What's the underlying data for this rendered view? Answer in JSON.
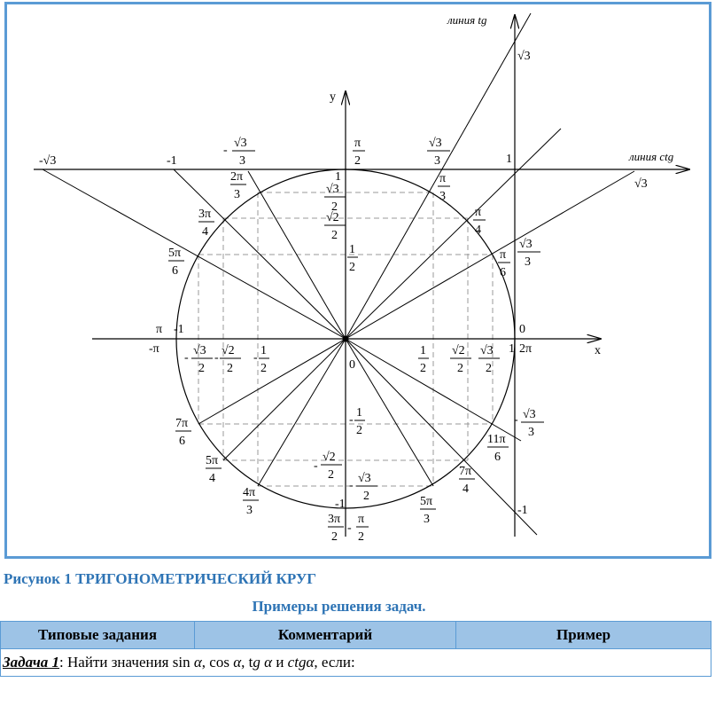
{
  "figure": {
    "axis_x_label": "x",
    "axis_y_label": "y",
    "tan_line_label": "линия tg",
    "cot_line_label": "линия ctg",
    "labels": {
      "pi_over_2": [
        "π",
        "2"
      ],
      "pi_over_3": [
        "π",
        "3"
      ],
      "pi_over_4": [
        "π",
        "4"
      ],
      "pi_over_6": [
        "π",
        "6"
      ],
      "two_pi_over_3": [
        "2π",
        "3"
      ],
      "three_pi_over_4": [
        "3π",
        "4"
      ],
      "five_pi_over_6": [
        "5π",
        "6"
      ],
      "seven_pi_over_6": [
        "7π",
        "6"
      ],
      "five_pi_over_4": [
        "5π",
        "4"
      ],
      "four_pi_over_3": [
        "4π",
        "3"
      ],
      "three_pi_over_2": [
        "3π",
        "2"
      ],
      "minus_pi_over_2": [
        "π",
        "2"
      ],
      "five_pi_over_3": [
        "5π",
        "3"
      ],
      "seven_pi_over_4": [
        "7π",
        "4"
      ],
      "eleven_pi_over_6": [
        "11π",
        "6"
      ],
      "pi": "π",
      "minus_pi": "-π",
      "zero": "0",
      "two_pi": "2π",
      "origin": "0",
      "one": "1",
      "minus_one": "-1",
      "sqrt3": "√3",
      "minus_sqrt3": "-√3",
      "minus_sign": "-",
      "sqrt2_over_2": [
        "√2",
        "2"
      ],
      "sqrt3_over_2": [
        "√3",
        "2"
      ],
      "sqrt3_over_3": [
        "√3",
        "3"
      ],
      "half": [
        "1",
        "2"
      ]
    }
  },
  "caption": "Рисунок 1 ТРИГОНОМЕТРИЧЕСКИЙ КРУГ",
  "examples_heading": "Примеры решения задач.",
  "table": {
    "headers": [
      "Типовые задания",
      "Комментарий",
      "Пример"
    ],
    "task_label": "Задача 1",
    "task_text_1": ": Найти значения sin ",
    "alpha": "α",
    "comma_cos": ", cos ",
    "comma_tg": ", t",
    "g": "g",
    "and": " и ",
    "ctg": "ctg",
    "ending": ", если:"
  }
}
